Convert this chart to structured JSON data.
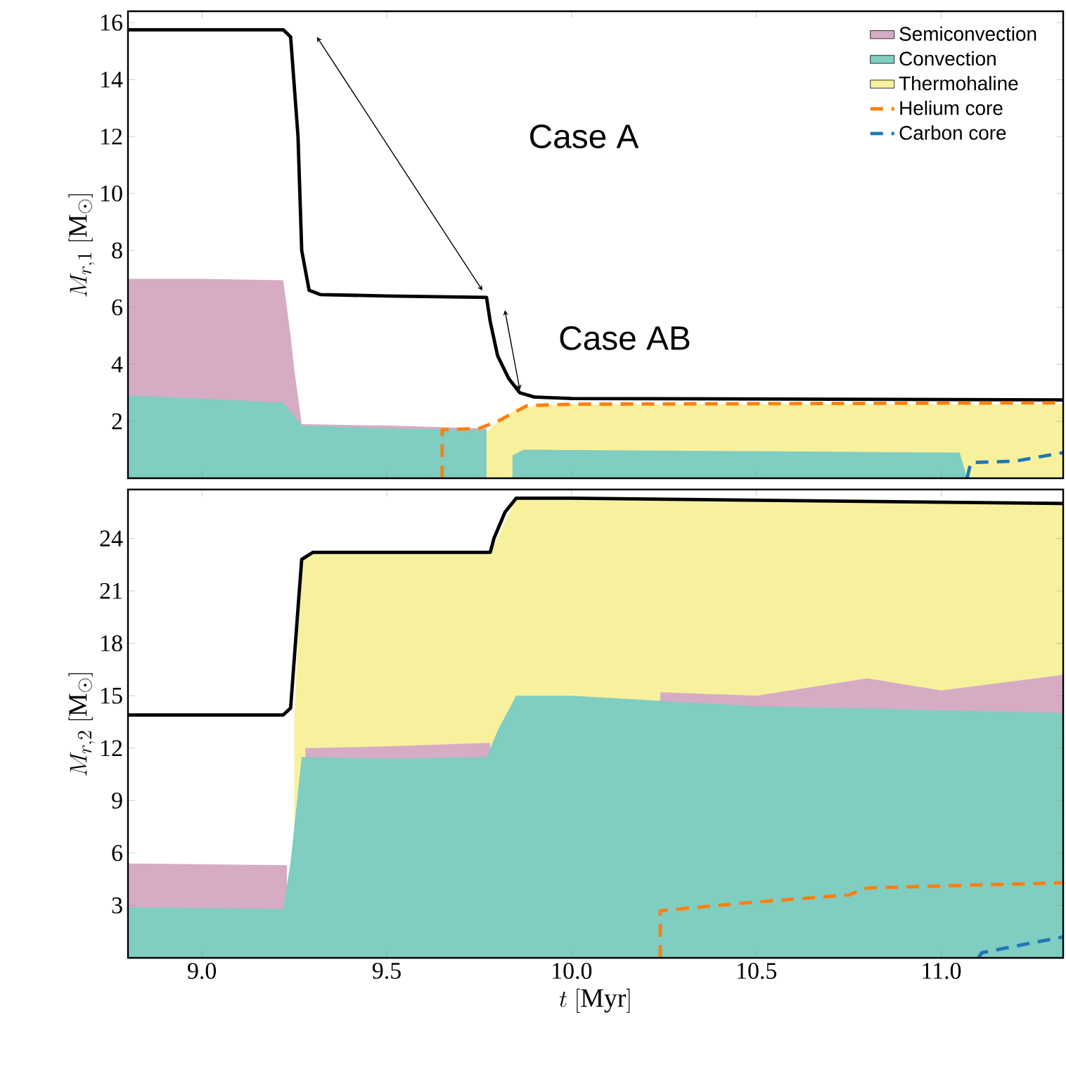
{
  "chart_data": [
    {
      "type": "area",
      "ylabel": "M_{r,1}\\ [\\mathrm{M}_\\odot]",
      "xlim": [
        8.8,
        11.33
      ],
      "ylim": [
        0,
        16.4
      ],
      "xticks": [
        9,
        9.5,
        10,
        10.5,
        11
      ],
      "yticks": [
        2,
        4,
        6,
        8,
        10,
        12,
        14,
        16
      ],
      "tick_labels": "y",
      "legend": "top right",
      "annotations": [
        "Case A",
        "Case AB"
      ],
      "series": [
        {
          "name": "Semiconvection",
          "color": "#d6acc4",
          "x": [
            8.8,
            9.0,
            9.22,
            9.24,
            9.25,
            9.27,
            9.5,
            9.77
          ],
          "values": [
            7.0,
            7.0,
            6.95,
            5.0,
            3.8,
            1.9,
            1.85,
            1.75
          ]
        },
        {
          "name": "Convection",
          "color": "#80cdc1",
          "x": [
            8.8,
            9.0,
            9.22,
            9.25,
            9.27,
            9.5,
            9.77
          ],
          "values": [
            2.9,
            2.8,
            2.65,
            2.2,
            1.85,
            1.75,
            1.7
          ]
        },
        {
          "name": "Thermohaline",
          "color": "#f7f19e",
          "x": [
            9.77,
            9.8,
            9.85,
            9.9,
            10.0,
            11.33
          ],
          "values": [
            1.6,
            2.0,
            2.4,
            2.55,
            2.6,
            2.6
          ]
        },
        {
          "color": "#80cdc1",
          "x": [
            9.84,
            9.87,
            10.5,
            11.05,
            11.07
          ],
          "values": [
            0.8,
            1.0,
            0.95,
            0.9,
            0
          ]
        },
        {
          "type": "line",
          "color": "#000000",
          "x": [
            8.8,
            9.22,
            9.24,
            9.26,
            9.27,
            9.29,
            9.32,
            9.5,
            9.77,
            9.78,
            9.8,
            9.83,
            9.86,
            9.9,
            10.0,
            11.33
          ],
          "values": [
            15.75,
            15.75,
            15.5,
            12.0,
            8.0,
            6.6,
            6.45,
            6.4,
            6.35,
            5.5,
            4.3,
            3.5,
            3.0,
            2.85,
            2.8,
            2.75
          ]
        },
        {
          "type": "line",
          "name": "Helium core",
          "color": "#ff7f0e",
          "line_style": "dashed",
          "x": [
            9.65,
            9.65,
            9.75,
            9.8,
            9.88,
            10.0,
            11.33
          ],
          "values": [
            0,
            1.7,
            1.75,
            2.0,
            2.55,
            2.6,
            2.65
          ]
        },
        {
          "type": "line",
          "name": "Carbon core",
          "color": "#1f77b4",
          "line_style": "dashed",
          "x": [
            11.07,
            11.08,
            11.2,
            11.33
          ],
          "values": [
            0,
            0.55,
            0.6,
            0.9
          ]
        }
      ]
    },
    {
      "type": "area",
      "ylabel": "M_{r,2}\\ [\\mathrm{M}_\\odot]",
      "xlabel": "t\\ [\\mathrm{Myr}]",
      "xlim": [
        8.8,
        11.33
      ],
      "ylim": [
        0,
        26.8
      ],
      "xticks": [
        {
          "value": 9,
          "label": "9.0"
        },
        {
          "value": 9.5,
          "label": "9.5"
        },
        {
          "value": 10,
          "label": "10.0"
        },
        {
          "value": 10.5,
          "label": "10.5"
        },
        {
          "value": 11,
          "label": "11.0"
        }
      ],
      "yticks": [
        3,
        6,
        9,
        12,
        15,
        18,
        21,
        24
      ],
      "series": [
        {
          "color": "#f7f19e",
          "x": [
            9.25,
            9.27,
            9.3,
            9.78,
            9.85,
            10.0,
            10.3,
            11.33
          ],
          "values": [
            14.0,
            22.8,
            23.2,
            23.2,
            26.3,
            26.3,
            26.2,
            26.0
          ]
        },
        {
          "color": "#d6acc4",
          "x": [
            8.8,
            9.23
          ],
          "values": [
            5.4,
            5.3
          ]
        },
        {
          "color": "#d6acc4",
          "x": [
            9.28,
            9.5,
            9.78
          ],
          "values": [
            12.0,
            12.1,
            12.3
          ]
        },
        {
          "color": "#d6acc4",
          "x": [
            10.24,
            10.5,
            10.8,
            11.0,
            11.33
          ],
          "values": [
            15.2,
            15.0,
            16.0,
            15.3,
            16.2
          ]
        },
        {
          "color": "#80cdc1",
          "x": [
            8.8,
            9.22,
            9.24,
            9.27,
            9.5,
            9.77,
            9.8,
            9.85,
            10.0,
            10.5,
            10.75,
            11.33
          ],
          "values": [
            2.9,
            2.8,
            5.5,
            11.5,
            11.4,
            11.5,
            13.0,
            15.0,
            15.0,
            14.4,
            14.3,
            14.0
          ]
        },
        {
          "type": "line",
          "color": "#000000",
          "x": [
            8.8,
            9.22,
            9.24,
            9.26,
            9.27,
            9.3,
            9.78,
            9.79,
            9.82,
            9.85,
            10.0,
            11.33
          ],
          "values": [
            13.9,
            13.9,
            14.3,
            20.0,
            22.8,
            23.2,
            23.2,
            24.0,
            25.5,
            26.3,
            26.3,
            26.0
          ]
        },
        {
          "type": "line",
          "color": "#ff7f0e",
          "line_style": "dashed",
          "x": [
            10.24,
            10.24,
            10.5,
            10.75,
            10.8,
            11.33
          ],
          "values": [
            0,
            2.7,
            3.2,
            3.6,
            4.0,
            4.3
          ]
        },
        {
          "type": "line",
          "color": "#1f77b4",
          "line_style": "dashed",
          "x": [
            11.1,
            11.11,
            11.33
          ],
          "values": [
            0,
            0.3,
            1.2
          ]
        }
      ]
    }
  ]
}
